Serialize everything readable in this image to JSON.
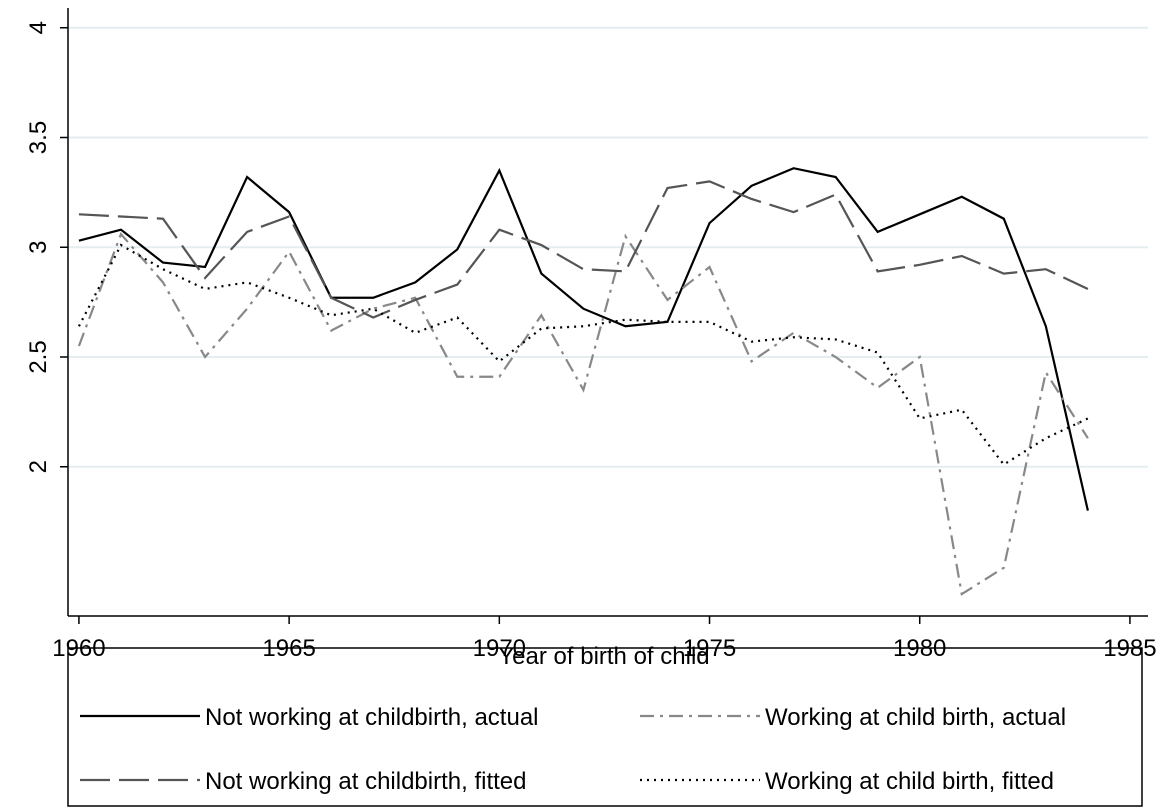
{
  "chart_data": {
    "type": "line",
    "xlabel": "Year of birth of child",
    "x": [
      1960,
      1961,
      1962,
      1963,
      1964,
      1965,
      1966,
      1967,
      1968,
      1969,
      1970,
      1971,
      1972,
      1973,
      1974,
      1975,
      1976,
      1977,
      1978,
      1979,
      1980,
      1981,
      1982,
      1983,
      1984
    ],
    "series": [
      {
        "name": "Not working at childbirth, actual",
        "color": "#000000",
        "dash": "solid",
        "values": [
          3.03,
          3.08,
          2.93,
          2.91,
          3.32,
          3.16,
          2.77,
          2.77,
          2.84,
          2.99,
          3.35,
          2.88,
          2.72,
          2.64,
          2.66,
          3.11,
          3.28,
          3.36,
          3.32,
          3.07,
          3.15,
          3.23,
          3.13,
          2.64,
          1.8
        ]
      },
      {
        "name": "Working at child birth, actual",
        "color": "#888888",
        "dash": "dashdot",
        "values": [
          2.55,
          3.06,
          2.84,
          2.5,
          2.72,
          2.98,
          2.62,
          2.72,
          2.77,
          2.41,
          2.41,
          2.69,
          2.35,
          3.05,
          2.76,
          2.91,
          2.48,
          2.61,
          2.5,
          2.36,
          2.5,
          1.42,
          1.54,
          2.43,
          2.13
        ]
      },
      {
        "name": "Not working at childbirth, fitted",
        "color": "#555555",
        "dash": "longdash",
        "values": [
          3.15,
          3.14,
          3.13,
          2.86,
          3.07,
          3.14,
          2.77,
          2.68,
          2.76,
          2.83,
          3.08,
          3.01,
          2.9,
          2.89,
          3.27,
          3.3,
          3.22,
          3.16,
          3.24,
          2.89,
          2.92,
          2.96,
          2.88,
          2.9,
          2.81
        ]
      },
      {
        "name": "Working at child birth, fitted",
        "color": "#000000",
        "dash": "dot",
        "values": [
          2.64,
          3.01,
          2.9,
          2.81,
          2.84,
          2.77,
          2.69,
          2.72,
          2.61,
          2.68,
          2.48,
          2.63,
          2.64,
          2.67,
          2.66,
          2.66,
          2.57,
          2.59,
          2.58,
          2.52,
          2.22,
          2.26,
          2.01,
          2.13,
          2.22
        ]
      }
    ],
    "xlim": [
      1959.74,
      1985.43
    ],
    "xticks": [
      1960,
      1965,
      1970,
      1975,
      1980,
      1985
    ],
    "ylim": [
      1.32,
      4.09
    ],
    "yticks": [
      2,
      2.5,
      3,
      3.5,
      4
    ],
    "grid": true,
    "legend": "bottom"
  }
}
